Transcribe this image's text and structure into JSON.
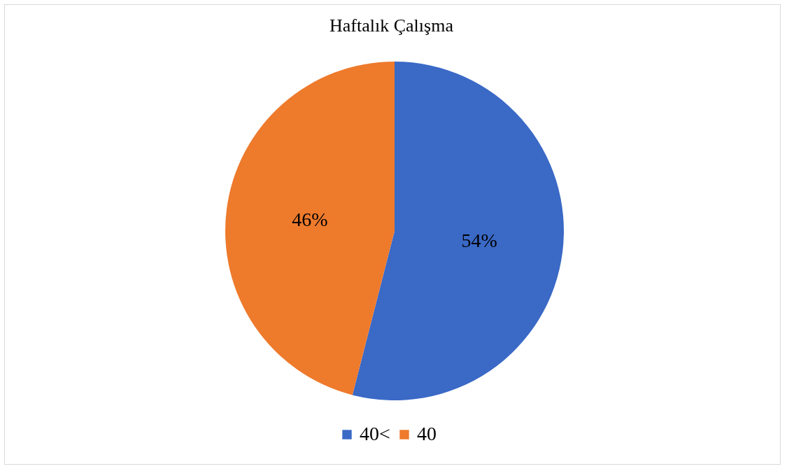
{
  "chart_data": {
    "type": "pie",
    "title": "Haftalık Çalışma",
    "categories": [
      "40<",
      "40"
    ],
    "values": [
      54,
      46
    ],
    "colors": [
      "#3a69c6",
      "#ee7a2c"
    ],
    "value_labels": [
      "54%",
      "46%"
    ],
    "legend": "bottom"
  }
}
